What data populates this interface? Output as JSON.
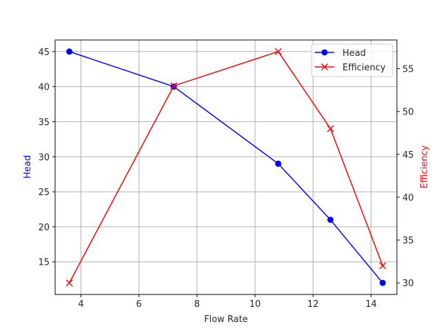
{
  "chart_data": {
    "type": "line",
    "title": "",
    "x": [
      3.6,
      7.2,
      10.8,
      12.6,
      14.4
    ],
    "xlabel": "Flow Rate",
    "xlim": [
      3.11,
      14.89
    ],
    "xticks": [
      4,
      6,
      8,
      10,
      12,
      14
    ],
    "grid": true,
    "legend_position": "upper right",
    "series": [
      {
        "name": "Head",
        "axis": "left",
        "color": "#0000ff",
        "marker": "o",
        "values": [
          45,
          40,
          29,
          21,
          12
        ]
      },
      {
        "name": "Efficiency",
        "axis": "right",
        "color": "#ff0000",
        "marker": "x",
        "values": [
          30,
          53,
          57,
          48,
          32
        ]
      }
    ],
    "left_axis": {
      "label": "Head",
      "color": "#0000ff",
      "ylim": [
        10.35,
        46.65
      ],
      "ticks": [
        15,
        20,
        25,
        30,
        35,
        40,
        45
      ]
    },
    "right_axis": {
      "label": "Efficiency",
      "color": "#ff0000",
      "ylim": [
        28.65,
        58.35
      ],
      "ticks": [
        30,
        35,
        40,
        45,
        50,
        55
      ]
    }
  }
}
